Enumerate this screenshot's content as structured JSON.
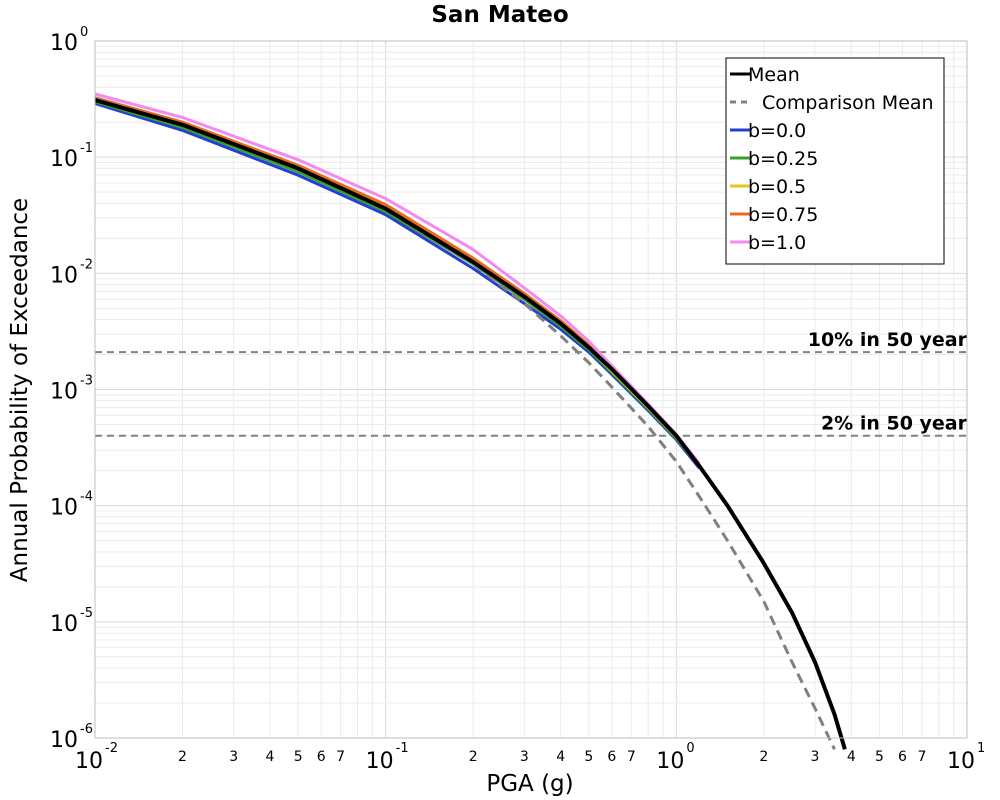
{
  "chart_data": {
    "type": "line",
    "title": "San Mateo",
    "xlabel": "PGA (g)",
    "ylabel": "Annual Probability of Exceedance",
    "xscale": "log",
    "yscale": "log",
    "xlim": [
      0.01,
      10
    ],
    "ylim": [
      1e-06,
      1
    ],
    "grid": true,
    "legend_position": "top-right",
    "x_tick_labels": [
      {
        "value": 0.01,
        "base": "10",
        "exp": "-2"
      },
      {
        "value": 0.1,
        "base": "10",
        "exp": "-1"
      },
      {
        "value": 1,
        "base": "10",
        "exp": "0"
      },
      {
        "value": 10,
        "base": "10",
        "exp": "1"
      }
    ],
    "x_minor_tick_labels": [
      "2",
      "3",
      "4",
      "5",
      "6",
      "7"
    ],
    "y_tick_labels": [
      {
        "value": 1,
        "base": "10",
        "exp": "0"
      },
      {
        "value": 0.1,
        "base": "10",
        "exp": "-1"
      },
      {
        "value": 0.01,
        "base": "10",
        "exp": "-2"
      },
      {
        "value": 0.001,
        "base": "10",
        "exp": "-3"
      },
      {
        "value": 0.0001,
        "base": "10",
        "exp": "-4"
      },
      {
        "value": 1e-05,
        "base": "10",
        "exp": "-5"
      },
      {
        "value": 1e-06,
        "base": "10",
        "exp": "-6"
      }
    ],
    "reference_lines": [
      {
        "label": "10% in 50 year",
        "y": 0.0021,
        "color": "#808080"
      },
      {
        "label": "2% in 50 year",
        "y": 0.0004,
        "color": "#808080"
      }
    ],
    "series": [
      {
        "name": "b=0.0",
        "color": "#1f3fd6",
        "width": 3,
        "dash": "solid",
        "x": [
          0.01,
          0.02,
          0.05,
          0.1,
          0.2,
          0.3,
          0.4,
          0.5,
          0.6,
          0.8,
          1.0,
          1.2
        ],
        "y": [
          0.29,
          0.17,
          0.07,
          0.032,
          0.011,
          0.0055,
          0.0033,
          0.0021,
          0.00135,
          0.00066,
          0.00037,
          0.00021
        ]
      },
      {
        "name": "b=0.25",
        "color": "#3a9e2f",
        "width": 3,
        "dash": "solid",
        "x": [
          0.01,
          0.02,
          0.05,
          0.1,
          0.2,
          0.3,
          0.4,
          0.5,
          0.6,
          0.8,
          1.0,
          1.2
        ],
        "y": [
          0.3,
          0.18,
          0.075,
          0.034,
          0.012,
          0.006,
          0.0035,
          0.0022,
          0.0014,
          0.00068,
          0.00038,
          0.00022
        ]
      },
      {
        "name": "b=0.5",
        "color": "#e6c619",
        "width": 3,
        "dash": "solid",
        "x": [
          0.01,
          0.02,
          0.05,
          0.1,
          0.2,
          0.3,
          0.4,
          0.5,
          0.6,
          0.8,
          1.0,
          1.2
        ],
        "y": [
          0.31,
          0.19,
          0.08,
          0.036,
          0.0125,
          0.0063,
          0.0037,
          0.0023,
          0.00145,
          0.0007,
          0.00039,
          0.00022
        ]
      },
      {
        "name": "b=0.75",
        "color": "#ea6a1a",
        "width": 3,
        "dash": "solid",
        "x": [
          0.01,
          0.02,
          0.05,
          0.1,
          0.2,
          0.3,
          0.4,
          0.5,
          0.6,
          0.8,
          1.0,
          1.2
        ],
        "y": [
          0.325,
          0.2,
          0.085,
          0.039,
          0.0135,
          0.0067,
          0.0039,
          0.0024,
          0.0015,
          0.00072,
          0.0004,
          0.00023
        ]
      },
      {
        "name": "b=1.0",
        "color": "#f48af0",
        "width": 3,
        "dash": "solid",
        "x": [
          0.01,
          0.02,
          0.05,
          0.1,
          0.2,
          0.3,
          0.4,
          0.5,
          0.6,
          0.8,
          1.0,
          1.2
        ],
        "y": [
          0.35,
          0.22,
          0.095,
          0.044,
          0.016,
          0.0075,
          0.0043,
          0.0026,
          0.0016,
          0.00075,
          0.00041,
          0.00023
        ]
      },
      {
        "name": "Comparison Mean",
        "color": "#808080",
        "width": 3,
        "dash": "dashed",
        "x": [
          0.01,
          0.02,
          0.05,
          0.1,
          0.2,
          0.3,
          0.4,
          0.5,
          0.6,
          0.8,
          1.0,
          1.2,
          1.5,
          2.0,
          2.5,
          3.0,
          3.5
        ],
        "y": [
          0.32,
          0.19,
          0.08,
          0.036,
          0.012,
          0.0055,
          0.0029,
          0.0017,
          0.00105,
          0.00048,
          0.00024,
          0.00012,
          5e-05,
          1.5e-05,
          4.5e-06,
          1.8e-06,
          8e-07
        ]
      },
      {
        "name": "Mean",
        "color": "#000000",
        "width": 4,
        "dash": "solid",
        "x": [
          0.01,
          0.02,
          0.05,
          0.1,
          0.2,
          0.3,
          0.4,
          0.5,
          0.6,
          0.8,
          1.0,
          1.2,
          1.5,
          2.0,
          2.5,
          3.0,
          3.5,
          3.8
        ],
        "y": [
          0.31,
          0.19,
          0.08,
          0.036,
          0.0125,
          0.0063,
          0.0037,
          0.0023,
          0.0015,
          0.00072,
          0.0004,
          0.00022,
          0.0001,
          3.2e-05,
          1.2e-05,
          4.5e-06,
          1.6e-06,
          8e-07
        ]
      }
    ],
    "legend": [
      {
        "name": "Mean",
        "color": "#000000",
        "dash": "solid"
      },
      {
        "name": "Comparison Mean",
        "color": "#808080",
        "dash": "dashed"
      },
      {
        "name": "b=0.0",
        "color": "#1f3fd6",
        "dash": "solid"
      },
      {
        "name": "b=0.25",
        "color": "#3a9e2f",
        "dash": "solid"
      },
      {
        "name": "b=0.5",
        "color": "#e6c619",
        "dash": "solid"
      },
      {
        "name": "b=0.75",
        "color": "#ea6a1a",
        "dash": "solid"
      },
      {
        "name": "b=1.0",
        "color": "#f48af0",
        "dash": "solid"
      }
    ]
  }
}
